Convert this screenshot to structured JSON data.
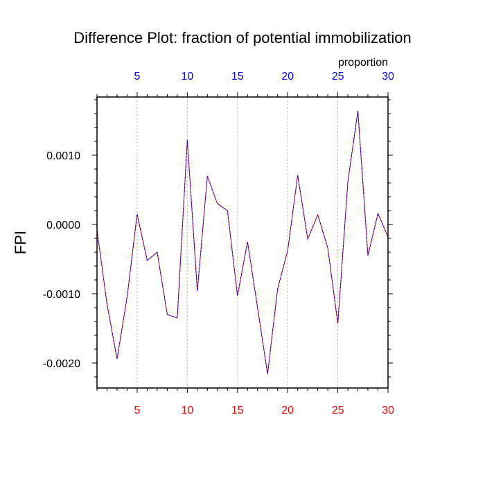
{
  "chart_data": {
    "type": "line",
    "title": "Difference Plot: fraction of potential immobilization",
    "ylabel": "FPI",
    "top_axis_label": "proportion",
    "x": [
      1,
      2,
      3,
      4,
      5,
      6,
      7,
      8,
      9,
      10,
      11,
      12,
      13,
      14,
      15,
      16,
      17,
      18,
      19,
      20,
      21,
      22,
      23,
      24,
      25,
      26,
      27,
      28,
      29,
      30
    ],
    "series": [
      {
        "values": [
          -8e-05,
          -0.00115,
          -0.00194,
          -0.00105,
          0.00015,
          -0.00052,
          -0.0004,
          -0.0013,
          -0.00135,
          0.00122,
          -0.00096,
          0.0007,
          0.0003,
          0.0002,
          -0.00103,
          -0.00025,
          -0.0012,
          -0.00216,
          -0.00093,
          -0.00038,
          0.00071,
          -0.00021,
          0.00014,
          -0.00034,
          -0.00143,
          0.00062,
          0.00164,
          -0.00045,
          0.00016,
          -0.00018
        ],
        "color": "#0000ff",
        "dash_color": "#ff0000"
      }
    ],
    "xlim": [
      1,
      30
    ],
    "ylim": [
      -0.00236,
      0.00184
    ],
    "x_ticks": [
      5,
      10,
      15,
      20,
      25,
      30
    ],
    "x_tick_labels": [
      "5",
      "10",
      "15",
      "20",
      "25",
      "30"
    ],
    "y_ticks": [
      0.001,
      0.0,
      -0.001,
      -0.002
    ],
    "y_tick_labels": [
      "0.0010",
      "0.0000",
      "-0.0010",
      "-0.0020"
    ],
    "bottom_tick_color": "#ff0000",
    "top_tick_color": "#0000ff",
    "grid": "vertical-dotted"
  }
}
